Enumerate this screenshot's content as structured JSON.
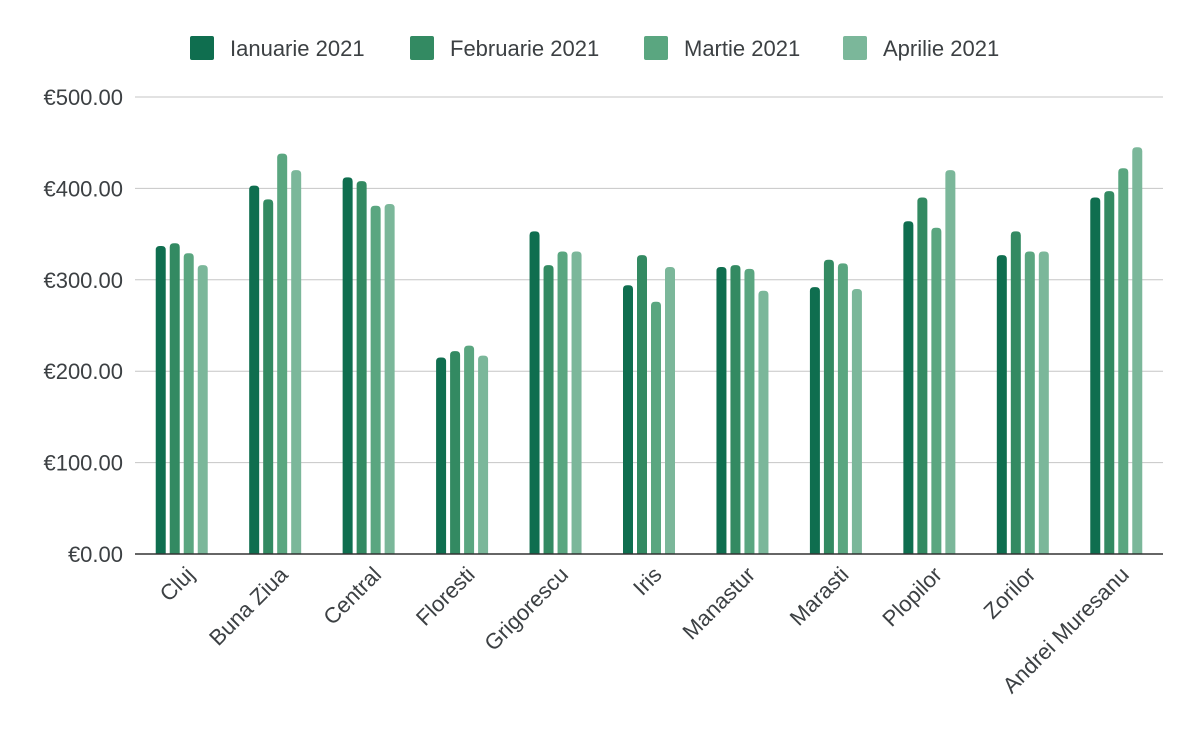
{
  "chart_data": {
    "type": "bar",
    "title": "",
    "xlabel": "",
    "ylabel": "",
    "ylim": [
      0,
      500
    ],
    "yticks": [
      0,
      100,
      200,
      300,
      400,
      500
    ],
    "ytick_labels": [
      "€0.00",
      "€100.00",
      "€200.00",
      "€300.00",
      "€400.00",
      "€500.00"
    ],
    "grid": true,
    "legend_position": "top",
    "categories": [
      "Cluj",
      "Buna Ziua",
      "Central",
      "Floresti",
      "Grigorescu",
      "Iris",
      "Manastur",
      "Marasti",
      "Plopilor",
      "Zorilor",
      "Andrei Muresanu"
    ],
    "series": [
      {
        "name": "Ianuarie 2021",
        "color": "#0f6e4f",
        "values": [
          337,
          403,
          412,
          215,
          353,
          294,
          314,
          292,
          364,
          327,
          390
        ]
      },
      {
        "name": "Februarie 2021",
        "color": "#338a62",
        "values": [
          340,
          388,
          408,
          222,
          316,
          327,
          316,
          322,
          390,
          353,
          397
        ]
      },
      {
        "name": "Martie 2021",
        "color": "#5aa680",
        "values": [
          329,
          438,
          381,
          228,
          331,
          276,
          312,
          318,
          357,
          331,
          422
        ]
      },
      {
        "name": "Aprilie 2021",
        "color": "#7bb79a",
        "values": [
          316,
          420,
          383,
          217,
          331,
          314,
          288,
          290,
          420,
          331,
          445
        ]
      }
    ]
  }
}
